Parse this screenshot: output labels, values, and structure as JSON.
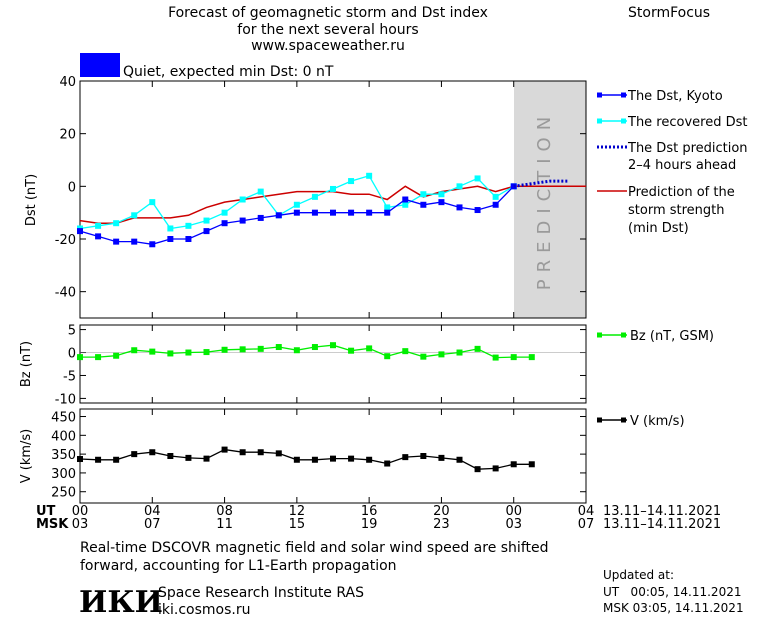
{
  "header": {
    "title_line1": "Forecast of geomagnetic storm and Dst index",
    "title_line2": "for the next several hours",
    "title_line3": "www.spaceweather.ru",
    "brand": "StormFocus"
  },
  "status": {
    "label": "Quiet, expected min Dst: 0 nT",
    "color": "#0000ff"
  },
  "colors": {
    "dst_kyoto": "#0000ff",
    "recovered": "#00ffff",
    "prediction": "#0000cc",
    "storm_strength": "#cc0000",
    "bz": "#00ee00",
    "v": "#000000",
    "prediction_band": "#d9d9d9"
  },
  "prediction_watermark": "PREDICTION",
  "chart_data": [
    {
      "type": "line",
      "id": "dst",
      "ylabel": "Dst (nT)",
      "ylim": [
        -50,
        40
      ],
      "yticks": [
        40,
        20,
        0,
        -20,
        -40
      ],
      "xlim": [
        0,
        28
      ],
      "prediction_region": [
        24,
        28
      ],
      "series": [
        {
          "name": "The Dst, Kyoto",
          "x": [
            0,
            1,
            2,
            3,
            4,
            5,
            6,
            7,
            8,
            9,
            10,
            11,
            12,
            13,
            14,
            15,
            16,
            17,
            18,
            19,
            20,
            21,
            22,
            23,
            24
          ],
          "y": [
            -17,
            -19,
            -21,
            -21,
            -22,
            -20,
            -20,
            -17,
            -14,
            -13,
            -12,
            -11,
            -10,
            -10,
            -10,
            -10,
            -10,
            -10,
            -5,
            -7,
            -6,
            -8,
            -9,
            -7,
            0
          ]
        },
        {
          "name": "The recovered Dst",
          "x": [
            0,
            1,
            2,
            3,
            4,
            5,
            6,
            7,
            8,
            9,
            10,
            11,
            12,
            13,
            14,
            15,
            16,
            17,
            18,
            19,
            20,
            21,
            22,
            23,
            24
          ],
          "y": [
            -16,
            -15,
            -14,
            -11,
            -6,
            -16,
            -15,
            -13,
            -10,
            -5,
            -2,
            -11,
            -7,
            -4,
            -1,
            2,
            4,
            -8,
            -7,
            -3,
            -3,
            0,
            3,
            -4,
            0
          ]
        },
        {
          "name": "The Dst prediction 2–4 hours ahead",
          "x": [
            24,
            25,
            26,
            27
          ],
          "y": [
            0,
            1,
            2,
            2
          ]
        },
        {
          "name": "Prediction of the storm strength (min Dst)",
          "x": [
            0,
            1,
            2,
            3,
            4,
            5,
            6,
            7,
            8,
            9,
            10,
            11,
            12,
            13,
            14,
            15,
            16,
            17,
            18,
            19,
            20,
            21,
            22,
            23,
            24,
            28
          ],
          "y": [
            -13,
            -14,
            -14,
            -12,
            -12,
            -12,
            -11,
            -8,
            -6,
            -5,
            -4,
            -3,
            -2,
            -2,
            -2,
            -3,
            -3,
            -5,
            0,
            -4,
            -2,
            -1,
            0,
            -2,
            0,
            0
          ]
        }
      ]
    },
    {
      "type": "line",
      "id": "bz",
      "ylabel": "Bz (nT)",
      "ylim": [
        -11,
        6
      ],
      "yticks": [
        5,
        0,
        -5,
        -10
      ],
      "xlim": [
        0,
        28
      ],
      "series": [
        {
          "name": "Bz (nT, GSM)",
          "x": [
            0,
            1,
            2,
            3,
            4,
            5,
            6,
            7,
            8,
            9,
            10,
            11,
            12,
            13,
            14,
            15,
            16,
            17,
            18,
            19,
            20,
            21,
            22,
            23,
            24,
            25
          ],
          "y": [
            -1,
            -1,
            -0.7,
            0.5,
            0.2,
            -0.2,
            0,
            0.1,
            0.6,
            0.7,
            0.8,
            1.2,
            0.5,
            1.2,
            1.6,
            0.4,
            0.9,
            -0.8,
            0.3,
            -0.9,
            -0.4,
            0,
            0.8,
            -1.1,
            -1,
            -1
          ]
        }
      ]
    },
    {
      "type": "line",
      "id": "v",
      "ylabel": "V (km/s)",
      "ylim": [
        220,
        470
      ],
      "yticks": [
        450,
        400,
        350,
        300,
        250
      ],
      "xlim": [
        0,
        28
      ],
      "series": [
        {
          "name": "V (km/s)",
          "x": [
            0,
            1,
            2,
            3,
            4,
            5,
            6,
            7,
            8,
            9,
            10,
            11,
            12,
            13,
            14,
            15,
            16,
            17,
            18,
            19,
            20,
            21,
            22,
            23,
            24,
            25
          ],
          "y": [
            337,
            335,
            335,
            350,
            355,
            345,
            340,
            338,
            362,
            355,
            355,
            352,
            335,
            335,
            338,
            338,
            335,
            325,
            342,
            345,
            340,
            335,
            310,
            312,
            323,
            323
          ]
        }
      ]
    }
  ],
  "x_axis": {
    "ticks": [
      0,
      4,
      8,
      12,
      16,
      20,
      24,
      28
    ],
    "ut_label": "UT",
    "msk_label": "MSK",
    "ut_ticks": [
      "00",
      "04",
      "08",
      "12",
      "16",
      "20",
      "00",
      "04"
    ],
    "msk_ticks": [
      "03",
      "07",
      "11",
      "15",
      "19",
      "23",
      "03",
      "07"
    ],
    "ut_range": "13.11–14.11.2021",
    "msk_range": "13.11–14.11.2021"
  },
  "legend": {
    "dst_kyoto": "The Dst, Kyoto",
    "recovered": "The recovered Dst",
    "prediction_l1": "The Dst prediction",
    "prediction_l2": "2–4 hours ahead",
    "storm_l1": "Prediction of the",
    "storm_l2": "storm strength",
    "storm_l3": "(min Dst)",
    "bz": "Bz (nT, GSM)",
    "v": "V (km/s)"
  },
  "footer": {
    "note_line1": "Real-time DSCOVR magnetic field and solar wind speed are shifted",
    "note_line2": "forward, accounting for L1-Earth propagation",
    "logo_text": "ИКИ",
    "institute": "Space Research Institute RAS",
    "site": "iki.cosmos.ru",
    "updated_label": "Updated at:",
    "updated_ut": "UT   00:05, 14.11.2021",
    "updated_msk": "MSK 03:05, 14.11.2021"
  }
}
